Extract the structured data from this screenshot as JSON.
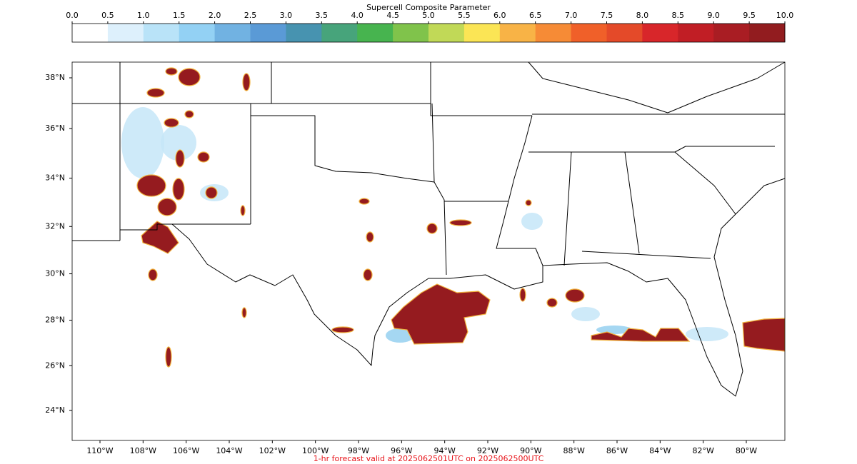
{
  "colorbar": {
    "title": "Supercell Composite Parameter",
    "ticks": [
      {
        "value": 0,
        "label": "0.0"
      },
      {
        "value": 0.5,
        "label": "0.5"
      },
      {
        "value": 1,
        "label": "1.0"
      },
      {
        "value": 1.5,
        "label": "1.5"
      },
      {
        "value": 2,
        "label": "2.0"
      },
      {
        "value": 2.5,
        "label": "2.5"
      },
      {
        "value": 3,
        "label": "3.0"
      },
      {
        "value": 3.5,
        "label": "3.5"
      },
      {
        "value": 4,
        "label": "4.0"
      },
      {
        "value": 4.5,
        "label": "4.5"
      },
      {
        "value": 5,
        "label": "5.0"
      },
      {
        "value": 5.5,
        "label": "5.5"
      },
      {
        "value": 6,
        "label": "6.0"
      },
      {
        "value": 6.5,
        "label": "6.5"
      },
      {
        "value": 7,
        "label": "7.0"
      },
      {
        "value": 7.5,
        "label": "7.5"
      },
      {
        "value": 8,
        "label": "8.0"
      },
      {
        "value": 8.5,
        "label": "8.5"
      },
      {
        "value": 9,
        "label": "9.0"
      },
      {
        "value": 9.5,
        "label": "9.5"
      },
      {
        "value": 10,
        "label": "10.0"
      }
    ],
    "colors": [
      "#ffffff",
      "#ddf0fc",
      "#b9e3f8",
      "#93d1f4",
      "#71b2e2",
      "#5a9ad6",
      "#4793b0",
      "#47a47b",
      "#47b44f",
      "#80c34b",
      "#c1d957",
      "#fbe555",
      "#f8b346",
      "#f68b36",
      "#f06029",
      "#e44a29",
      "#d8262a",
      "#c11e25",
      "#a91d23",
      "#921c1f"
    ]
  },
  "map": {
    "lat_ticks": [
      {
        "value": 38,
        "label": "38°N"
      },
      {
        "value": 36,
        "label": "36°N"
      },
      {
        "value": 34,
        "label": "34°N"
      },
      {
        "value": 32,
        "label": "32°N"
      },
      {
        "value": 30,
        "label": "30°N"
      },
      {
        "value": 28,
        "label": "28°N"
      },
      {
        "value": 26,
        "label": "26°N"
      },
      {
        "value": 24,
        "label": "24°N"
      }
    ],
    "lon_ticks": [
      {
        "value": -110,
        "label": "110°W"
      },
      {
        "value": -108,
        "label": "108°W"
      },
      {
        "value": -106,
        "label": "106°W"
      },
      {
        "value": -104,
        "label": "104°W"
      },
      {
        "value": -102,
        "label": "102°W"
      },
      {
        "value": -100,
        "label": "100°W"
      },
      {
        "value": -98,
        "label": "98°W"
      },
      {
        "value": -96,
        "label": "96°W"
      },
      {
        "value": -94,
        "label": "94°W"
      },
      {
        "value": -92,
        "label": "92°W"
      },
      {
        "value": -90,
        "label": "90°W"
      },
      {
        "value": -88,
        "label": "88°W"
      },
      {
        "value": -86,
        "label": "86°W"
      },
      {
        "value": -84,
        "label": "84°W"
      },
      {
        "value": -82,
        "label": "82°W"
      },
      {
        "value": -80,
        "label": "80°W"
      }
    ]
  },
  "footer": "1-hr forecast valid at 2025062501UTC on 2025062500UTC"
}
